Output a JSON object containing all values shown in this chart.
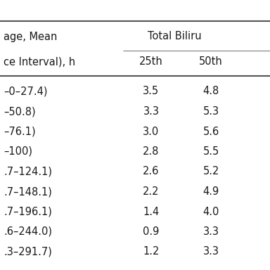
{
  "header_row1_left": "age, Mean",
  "header_row1_right": "Total Biliru",
  "header_row2_left": "ce Interval), h",
  "col_headers": [
    "25th",
    "50th"
  ],
  "row_labels": [
    "–0–27.4)",
    "–50.8)",
    "–76.1)",
    "–100)",
    ".7–124.1)",
    ".7–148.1)",
    ".7–196.1)",
    ".6–244.0)",
    ".3–291.7)"
  ],
  "col1_values": [
    "3.5",
    "3.3",
    "3.0",
    "2.8",
    "2.6",
    "2.2",
    "1.4",
    "0.9",
    "1.2"
  ],
  "col2_values": [
    "4.8",
    "5.3",
    "5.6",
    "5.5",
    "5.2",
    "4.9",
    "4.0",
    "3.3",
    "3.3"
  ],
  "bg_color": "#ffffff",
  "text_color": "#1a1a1a",
  "line_color": "#888888",
  "thick_line_color": "#555555",
  "font_size": 10.5
}
